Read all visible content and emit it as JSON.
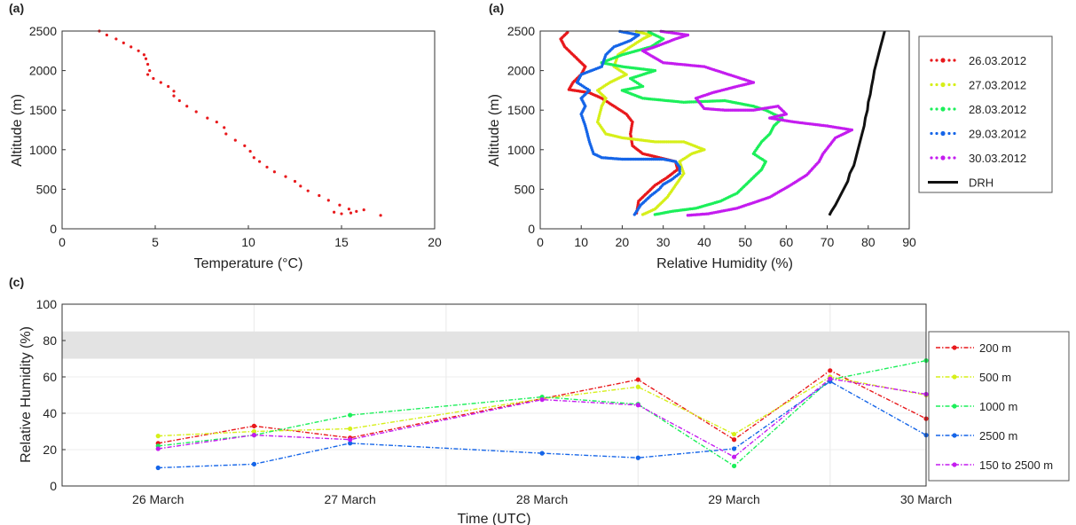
{
  "panels": {
    "a1_label": "(a)",
    "a2_label": "(a)",
    "c_label": "(c)"
  },
  "colors": {
    "red": "#e8191c",
    "yellow": "#d6ef19",
    "green": "#1cef5a",
    "blue": "#1565e8",
    "magenta": "#c41cef",
    "black": "#111111",
    "shade": "#e3e3e3"
  },
  "chart_data": [
    {
      "id": "temperature",
      "type": "scatter",
      "xlabel": "Temperature (°C)",
      "ylabel": "Altitude (m)",
      "xlim": [
        0,
        20
      ],
      "ylim": [
        0,
        2500
      ],
      "xticks": [
        "0",
        "5",
        "10",
        "15",
        "20"
      ],
      "yticks": [
        "0",
        "500",
        "1000",
        "1500",
        "2000",
        "2500"
      ],
      "grid": false,
      "series": [
        {
          "color": "red",
          "points": [
            [
              2.0,
              2500
            ],
            [
              2.4,
              2450
            ],
            [
              2.9,
              2400
            ],
            [
              3.3,
              2350
            ],
            [
              3.7,
              2300
            ],
            [
              4.1,
              2250
            ],
            [
              4.4,
              2200
            ],
            [
              4.5,
              2150
            ],
            [
              4.6,
              2080
            ],
            [
              4.7,
              2000
            ],
            [
              4.6,
              1950
            ],
            [
              4.9,
              1900
            ],
            [
              5.3,
              1850
            ],
            [
              5.7,
              1800
            ],
            [
              6.0,
              1740
            ],
            [
              6.0,
              1680
            ],
            [
              6.3,
              1620
            ],
            [
              6.7,
              1550
            ],
            [
              7.2,
              1480
            ],
            [
              7.8,
              1400
            ],
            [
              8.3,
              1350
            ],
            [
              8.7,
              1280
            ],
            [
              8.8,
              1200
            ],
            [
              9.3,
              1120
            ],
            [
              9.8,
              1050
            ],
            [
              10.1,
              980
            ],
            [
              10.3,
              900
            ],
            [
              10.6,
              850
            ],
            [
              11.0,
              780
            ],
            [
              11.4,
              720
            ],
            [
              12.0,
              660
            ],
            [
              12.5,
              600
            ],
            [
              12.8,
              540
            ],
            [
              13.2,
              480
            ],
            [
              13.8,
              420
            ],
            [
              14.3,
              360
            ],
            [
              14.9,
              300
            ],
            [
              15.4,
              250
            ],
            [
              15.8,
              220
            ],
            [
              16.2,
              240
            ],
            [
              17.1,
              170
            ],
            [
              15.0,
              190
            ],
            [
              14.6,
              210
            ],
            [
              15.5,
              200
            ]
          ]
        }
      ]
    },
    {
      "id": "humidity-profiles",
      "type": "line",
      "xlabel": "Relative Humidity (%)",
      "ylabel": "Altitude (m)",
      "xlim": [
        0,
        90
      ],
      "ylim": [
        0,
        2500
      ],
      "xticks": [
        "0",
        "10",
        "20",
        "30",
        "40",
        "50",
        "60",
        "70",
        "80",
        "90"
      ],
      "yticks": [
        "0",
        "500",
        "1000",
        "1500",
        "2000",
        "2500"
      ],
      "grid": false,
      "legend_position": "right",
      "series": [
        {
          "name": "26.03.2012",
          "color": "red",
          "style": "dots",
          "points": [
            [
              23.5,
              200
            ],
            [
              24,
              350
            ],
            [
              26,
              450
            ],
            [
              28,
              550
            ],
            [
              31,
              650
            ],
            [
              33.5,
              750
            ],
            [
              33,
              850
            ],
            [
              29,
              900
            ],
            [
              25,
              950
            ],
            [
              22.5,
              1050
            ],
            [
              22,
              1200
            ],
            [
              22.5,
              1350
            ],
            [
              21,
              1450
            ],
            [
              18,
              1550
            ],
            [
              15,
              1650
            ],
            [
              12,
              1720
            ],
            [
              7,
              1760
            ],
            [
              8,
              1850
            ],
            [
              10,
              1950
            ],
            [
              11,
              2050
            ],
            [
              9,
              2150
            ],
            [
              6,
              2300
            ],
            [
              5,
              2400
            ],
            [
              7,
              2500
            ]
          ]
        },
        {
          "name": "27.03.2012",
          "color": "yellow",
          "style": "dots",
          "points": [
            [
              25,
              180
            ],
            [
              28,
              250
            ],
            [
              31,
              400
            ],
            [
              33,
              550
            ],
            [
              35,
              700
            ],
            [
              34,
              850
            ],
            [
              37,
              950
            ],
            [
              40,
              1000
            ],
            [
              35,
              1100
            ],
            [
              28,
              1100
            ],
            [
              20,
              1150
            ],
            [
              16,
              1200
            ],
            [
              14,
              1350
            ],
            [
              15,
              1550
            ],
            [
              16,
              1650
            ],
            [
              14,
              1750
            ],
            [
              17,
              1850
            ],
            [
              21,
              1950
            ],
            [
              18,
              2050
            ],
            [
              19,
              2200
            ],
            [
              22,
              2300
            ],
            [
              25,
              2400
            ],
            [
              27,
              2450
            ],
            [
              23,
              2500
            ]
          ]
        },
        {
          "name": "28.03.2012",
          "color": "green",
          "style": "dots",
          "points": [
            [
              28,
              180
            ],
            [
              32,
              220
            ],
            [
              38,
              260
            ],
            [
              44,
              350
            ],
            [
              48,
              450
            ],
            [
              51,
              600
            ],
            [
              54,
              750
            ],
            [
              55,
              850
            ],
            [
              52,
              950
            ],
            [
              54,
              1100
            ],
            [
              56,
              1200
            ],
            [
              57,
              1300
            ],
            [
              59,
              1400
            ],
            [
              55,
              1500
            ],
            [
              52,
              1550
            ],
            [
              45,
              1620
            ],
            [
              35,
              1600
            ],
            [
              25,
              1650
            ],
            [
              20,
              1750
            ],
            [
              25,
              1800
            ],
            [
              22,
              1900
            ],
            [
              28,
              2000
            ],
            [
              20,
              2050
            ],
            [
              15,
              2100
            ],
            [
              20,
              2200
            ],
            [
              27,
              2300
            ],
            [
              30,
              2400
            ],
            [
              26,
              2500
            ]
          ]
        },
        {
          "name": "29.03.2012",
          "color": "blue",
          "style": "dots",
          "points": [
            [
              23,
              180
            ],
            [
              24.5,
              300
            ],
            [
              27,
              420
            ],
            [
              29,
              500
            ],
            [
              30,
              560
            ],
            [
              32,
              620
            ],
            [
              34,
              700
            ],
            [
              34,
              780
            ],
            [
              33,
              850
            ],
            [
              30,
              880
            ],
            [
              20,
              880
            ],
            [
              15,
              900
            ],
            [
              13,
              950
            ],
            [
              12,
              1100
            ],
            [
              11,
              1300
            ],
            [
              10,
              1450
            ],
            [
              11,
              1550
            ],
            [
              10,
              1650
            ],
            [
              12,
              1750
            ],
            [
              9,
              1850
            ],
            [
              10,
              1950
            ],
            [
              15,
              2050
            ],
            [
              16,
              2200
            ],
            [
              18,
              2300
            ],
            [
              22,
              2380
            ],
            [
              24,
              2450
            ],
            [
              19,
              2500
            ]
          ]
        },
        {
          "name": "30.03.2012",
          "color": "magenta",
          "style": "dots",
          "points": [
            [
              36,
              170
            ],
            [
              41,
              190
            ],
            [
              48,
              260
            ],
            [
              56,
              400
            ],
            [
              61,
              550
            ],
            [
              65,
              680
            ],
            [
              68,
              850
            ],
            [
              69,
              950
            ],
            [
              72,
              1150
            ],
            [
              76,
              1250
            ],
            [
              70,
              1300
            ],
            [
              62,
              1350
            ],
            [
              56,
              1400
            ],
            [
              60,
              1450
            ],
            [
              58,
              1550
            ],
            [
              52,
              1500
            ],
            [
              45,
              1500
            ],
            [
              40,
              1520
            ],
            [
              38,
              1650
            ],
            [
              42,
              1720
            ],
            [
              48,
              1800
            ],
            [
              52,
              1850
            ],
            [
              46,
              1950
            ],
            [
              40,
              2050
            ],
            [
              30,
              2100
            ],
            [
              25,
              2250
            ],
            [
              28,
              2300
            ],
            [
              33,
              2400
            ],
            [
              36,
              2450
            ],
            [
              29,
              2500
            ]
          ]
        },
        {
          "name": "DRH",
          "color": "black",
          "style": "line",
          "points": [
            [
              70.5,
              170
            ],
            [
              71,
              220
            ],
            [
              72,
              300
            ],
            [
              73,
              400
            ],
            [
              74,
              500
            ],
            [
              75,
              600
            ],
            [
              75.5,
              700
            ],
            [
              76.5,
              800
            ],
            [
              77,
              900
            ],
            [
              77.5,
              1000
            ],
            [
              78,
              1100
            ],
            [
              78.5,
              1200
            ],
            [
              79,
              1300
            ],
            [
              79.3,
              1400
            ],
            [
              79.8,
              1500
            ],
            [
              80,
              1600
            ],
            [
              80.5,
              1700
            ],
            [
              80.8,
              1800
            ],
            [
              81.2,
              1900
            ],
            [
              81.5,
              2000
            ],
            [
              82,
              2100
            ],
            [
              82.5,
              2200
            ],
            [
              83,
              2300
            ],
            [
              83.5,
              2400
            ],
            [
              84,
              2500
            ]
          ]
        }
      ]
    },
    {
      "id": "humidity-time",
      "type": "line",
      "xlabel": "Time (UTC)",
      "ylabel": "Relative Humidity (%)",
      "xlim": [
        0,
        4.5
      ],
      "ylim": [
        0,
        100
      ],
      "x_tick_labels": [
        "26 March",
        "27 March",
        "28 March",
        "29 March",
        "30 March"
      ],
      "x_tick_positions": [
        0.5,
        1.5,
        2.5,
        3.5,
        4.5
      ],
      "yticks": [
        "0",
        "20",
        "40",
        "60",
        "80",
        "100"
      ],
      "grid": true,
      "shaded_band": [
        70,
        85
      ],
      "legend_position": "right",
      "x": [
        0.5,
        1.0,
        1.5,
        2.5,
        3.0,
        3.5,
        4.0,
        4.5
      ],
      "series": [
        {
          "name": "200 m",
          "color": "red",
          "values": [
            23.5,
            33,
            26.5,
            48,
            58.5,
            25.5,
            63.5,
            37
          ]
        },
        {
          "name": "500 m",
          "color": "yellow",
          "values": [
            27.5,
            30,
            31.5,
            48,
            54.5,
            28.5,
            60,
            50
          ]
        },
        {
          "name": "1000 m",
          "color": "green",
          "values": [
            22,
            28,
            39,
            49,
            45,
            11,
            58.5,
            69
          ]
        },
        {
          "name": "2500 m",
          "color": "blue",
          "values": [
            10,
            12,
            23.5,
            18,
            15.5,
            20.5,
            57.5,
            28
          ]
        },
        {
          "name": "150 to 2500 m",
          "color": "magenta",
          "values": [
            20.5,
            28,
            25.5,
            47.5,
            44.5,
            16,
            59,
            50.5
          ]
        }
      ]
    }
  ]
}
